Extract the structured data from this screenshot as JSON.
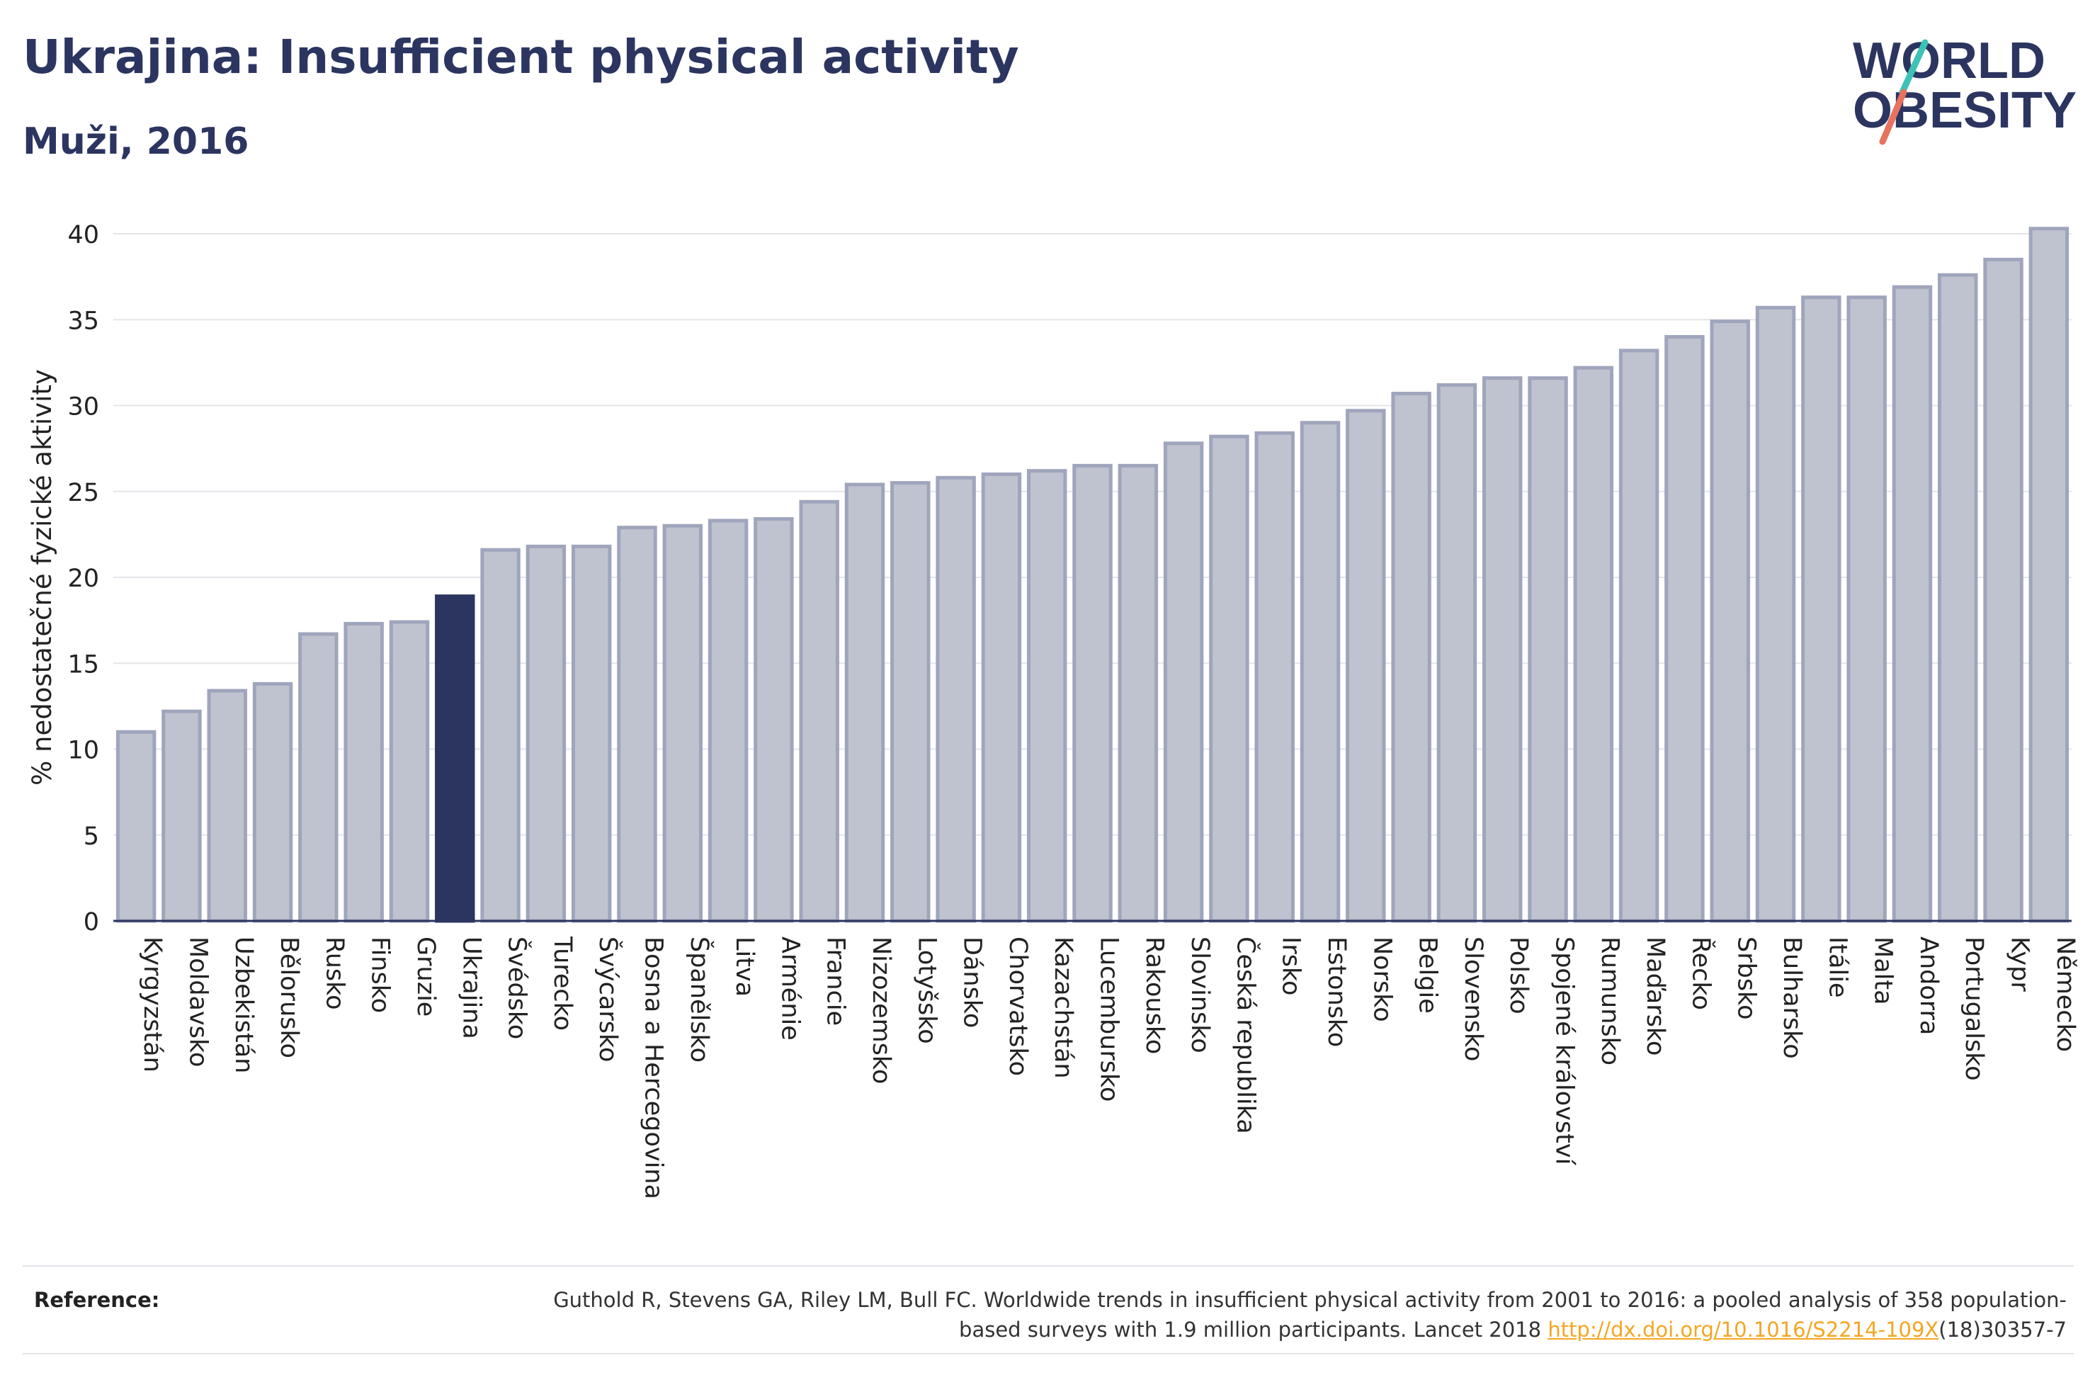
{
  "header": {
    "title": "Ukrajina: Insufficient physical activity",
    "subtitle": "Muži, 2016"
  },
  "logo": {
    "line1": "WORLD",
    "line2": "OBESITY"
  },
  "chart_data": {
    "type": "bar",
    "ylabel": "% nedostatečné fyzické aktivity",
    "ylim": [
      0,
      40
    ],
    "yticks": [
      0,
      5,
      10,
      15,
      20,
      25,
      30,
      35,
      40
    ],
    "grid": true,
    "highlight": "Ukrajina",
    "colors": {
      "bar": "#bfc3cf",
      "bar_edge": "#9fa5bc",
      "highlight": "#2b3560"
    },
    "categories": [
      "Kyrgyzstán",
      "Moldavsko",
      "Uzbekistán",
      "Bělorusko",
      "Rusko",
      "Finsko",
      "Gruzie",
      "Ukrajina",
      "Švédsko",
      "Turecko",
      "Švýcarsko",
      "Bosna a Hercegovina",
      "Španělsko",
      "Litva",
      "Arménie",
      "Francie",
      "Nizozemsko",
      "Lotyšsko",
      "Dánsko",
      "Chorvatsko",
      "Kazachstán",
      "Lucembursko",
      "Rakousko",
      "Slovinsko",
      "Česká republika",
      "Irsko",
      "Estonsko",
      "Norsko",
      "Belgie",
      "Slovensko",
      "Polsko",
      "Spojené království",
      "Rumunsko",
      "Maďarsko",
      "Řecko",
      "Srbsko",
      "Bulharsko",
      "Itálie",
      "Malta",
      "Andorra",
      "Portugalsko",
      "Kypr",
      "Německo"
    ],
    "values": [
      11.0,
      12.2,
      13.4,
      13.8,
      16.7,
      17.3,
      17.4,
      18.9,
      21.6,
      21.8,
      21.8,
      22.9,
      23.0,
      23.3,
      23.4,
      24.4,
      25.4,
      25.5,
      25.8,
      26.0,
      26.2,
      26.5,
      26.5,
      27.8,
      28.2,
      28.4,
      29.0,
      29.7,
      30.7,
      31.2,
      31.6,
      31.6,
      32.2,
      33.2,
      34.0,
      34.9,
      35.7,
      36.3,
      36.3,
      36.9,
      37.6,
      38.5,
      40.3
    ]
  },
  "reference": {
    "label": "Reference:",
    "text_before": "Guthold R, Stevens GA, Riley LM, Bull FC. Worldwide trends in insufficient physical activity from 2001 to 2016: a pooled analysis of 358 population-based surveys with 1.9 million participants. Lancet 2018 ",
    "link": "http://dx.doi.org/10.1016/S2214-109X",
    "text_after": "(18)30357-7"
  }
}
